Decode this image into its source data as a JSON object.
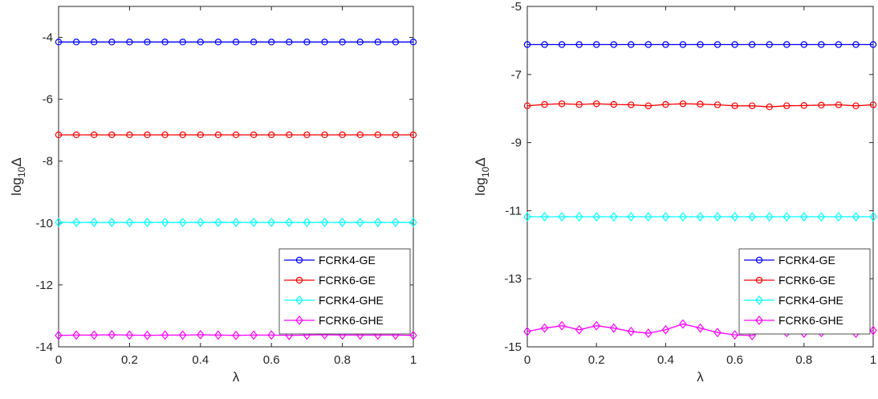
{
  "chart_data": [
    {
      "type": "line",
      "title": "",
      "xlabel": "λ",
      "ylabel_base": "log",
      "ylabel_sub": "10",
      "ylabel_tail": "Δ",
      "xlim": [
        0,
        1
      ],
      "ylim": [
        -14,
        -3
      ],
      "xticks": [
        0,
        0.2,
        0.4,
        0.6,
        0.8,
        1
      ],
      "xtick_labels": [
        "0",
        "0.2",
        "0.4",
        "0.6",
        "0.8",
        "1"
      ],
      "yticks": [
        -14,
        -12,
        -10,
        -8,
        -6,
        -4
      ],
      "ytick_labels": [
        "-14",
        "-12",
        "-10",
        "-8",
        "-6",
        "-4"
      ],
      "grid": false,
      "legend_position": "lower-right",
      "x": [
        0,
        0.05,
        0.1,
        0.15,
        0.2,
        0.25,
        0.3,
        0.35,
        0.4,
        0.45,
        0.5,
        0.55,
        0.6,
        0.65,
        0.7,
        0.75,
        0.8,
        0.85,
        0.9,
        0.95,
        1
      ],
      "series": [
        {
          "name": "FCRK4-GE",
          "color": "#0000ff",
          "marker": "circle",
          "values": [
            -4.15,
            -4.15,
            -4.15,
            -4.15,
            -4.15,
            -4.15,
            -4.15,
            -4.15,
            -4.15,
            -4.15,
            -4.15,
            -4.15,
            -4.15,
            -4.15,
            -4.15,
            -4.15,
            -4.15,
            -4.15,
            -4.15,
            -4.15,
            -4.15
          ]
        },
        {
          "name": "FCRK6-GE",
          "color": "#ff0000",
          "marker": "circle",
          "values": [
            -7.15,
            -7.15,
            -7.15,
            -7.15,
            -7.15,
            -7.15,
            -7.15,
            -7.15,
            -7.15,
            -7.15,
            -7.15,
            -7.15,
            -7.15,
            -7.15,
            -7.15,
            -7.15,
            -7.15,
            -7.15,
            -7.15,
            -7.15,
            -7.15
          ]
        },
        {
          "name": "FCRK4-GHE",
          "color": "#00ffff",
          "marker": "diamond",
          "values": [
            -9.98,
            -9.98,
            -9.98,
            -9.98,
            -9.98,
            -9.98,
            -9.98,
            -9.98,
            -9.98,
            -9.98,
            -9.98,
            -9.98,
            -9.98,
            -9.98,
            -9.98,
            -9.98,
            -9.98,
            -9.98,
            -9.98,
            -9.98,
            -9.98
          ]
        },
        {
          "name": "FCRK6-GHE",
          "color": "#ff00ff",
          "marker": "diamond",
          "values": [
            -13.63,
            -13.62,
            -13.62,
            -13.61,
            -13.62,
            -13.63,
            -13.62,
            -13.62,
            -13.61,
            -13.62,
            -13.63,
            -13.62,
            -13.62,
            -13.63,
            -13.62,
            -13.61,
            -13.62,
            -13.62,
            -13.62,
            -13.62,
            -13.63
          ]
        }
      ]
    },
    {
      "type": "line",
      "title": "",
      "xlabel": "λ",
      "ylabel_base": "log",
      "ylabel_sub": "10",
      "ylabel_tail": "Δ",
      "xlim": [
        0,
        1
      ],
      "ylim": [
        -15,
        -5
      ],
      "xticks": [
        0,
        0.2,
        0.4,
        0.6,
        0.8,
        1
      ],
      "xtick_labels": [
        "0",
        "0.2",
        "0.4",
        "0.6",
        "0.8",
        "1"
      ],
      "yticks": [
        -15,
        -13,
        -11,
        -9,
        -7,
        -5
      ],
      "ytick_labels": [
        "-15",
        "-13",
        "-11",
        "-9",
        "-7",
        "-5"
      ],
      "grid": false,
      "legend_position": "lower-right",
      "x": [
        0,
        0.05,
        0.1,
        0.15,
        0.2,
        0.25,
        0.3,
        0.35,
        0.4,
        0.45,
        0.5,
        0.55,
        0.6,
        0.65,
        0.7,
        0.75,
        0.8,
        0.85,
        0.9,
        0.95,
        1
      ],
      "series": [
        {
          "name": "FCRK4-GE",
          "color": "#0000ff",
          "marker": "circle",
          "values": [
            -6.12,
            -6.12,
            -6.12,
            -6.12,
            -6.12,
            -6.12,
            -6.12,
            -6.12,
            -6.12,
            -6.12,
            -6.12,
            -6.12,
            -6.12,
            -6.12,
            -6.12,
            -6.12,
            -6.12,
            -6.12,
            -6.12,
            -6.12,
            -6.12
          ]
        },
        {
          "name": "FCRK6-GE",
          "color": "#ff0000",
          "marker": "circle",
          "values": [
            -7.92,
            -7.88,
            -7.86,
            -7.88,
            -7.86,
            -7.88,
            -7.89,
            -7.92,
            -7.88,
            -7.86,
            -7.87,
            -7.89,
            -7.92,
            -7.92,
            -7.95,
            -7.92,
            -7.91,
            -7.9,
            -7.89,
            -7.92,
            -7.89
          ]
        },
        {
          "name": "FCRK4-GHE",
          "color": "#00ffff",
          "marker": "diamond",
          "values": [
            -11.18,
            -11.18,
            -11.18,
            -11.18,
            -11.18,
            -11.18,
            -11.18,
            -11.18,
            -11.18,
            -11.18,
            -11.18,
            -11.18,
            -11.18,
            -11.18,
            -11.18,
            -11.18,
            -11.18,
            -11.18,
            -11.18,
            -11.18,
            -11.18
          ]
        },
        {
          "name": "FCRK6-GHE",
          "color": "#ff00ff",
          "marker": "diamond",
          "values": [
            -14.55,
            -14.45,
            -14.38,
            -14.5,
            -14.38,
            -14.45,
            -14.55,
            -14.6,
            -14.5,
            -14.33,
            -14.45,
            -14.58,
            -14.65,
            -14.67,
            -14.45,
            -14.58,
            -14.6,
            -14.58,
            -14.5,
            -14.6,
            -14.52
          ]
        }
      ]
    }
  ]
}
